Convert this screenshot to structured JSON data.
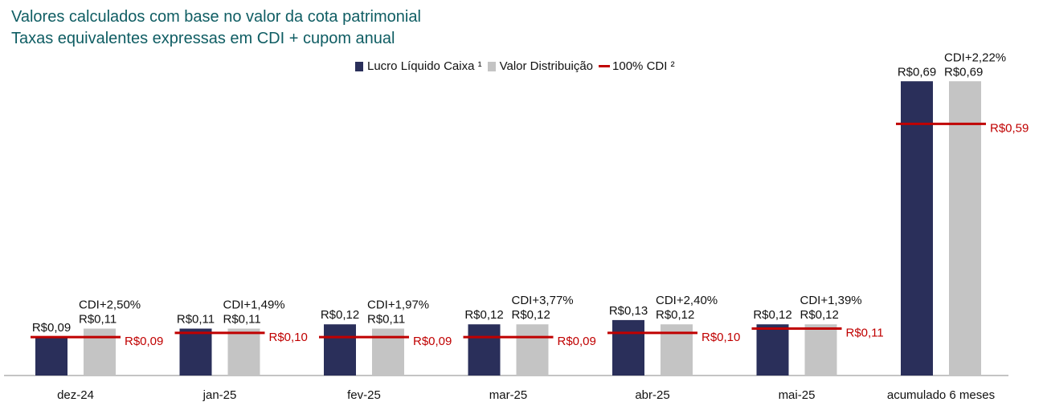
{
  "header": {
    "title": "Valores calculados com base no valor da cota patrimonial",
    "subtitle": "Taxas equivalentes expressas em CDI + cupom anual"
  },
  "legend": {
    "items": [
      {
        "label": "Lucro Líquido Caixa ¹",
        "color": "#2a2f5a",
        "kind": "bar"
      },
      {
        "label": "Valor Distribuição",
        "color": "#c4c4c4",
        "kind": "bar"
      },
      {
        "label": "100% CDI ²",
        "color": "#c00000",
        "kind": "line"
      }
    ]
  },
  "colors": {
    "lucro": "#2a2f5a",
    "distribuicao": "#c4c4c4",
    "cdi": "#c00000",
    "label_text": "#111111",
    "cdi_text": "#c00000",
    "title": "#0f5d63"
  },
  "chart_data": {
    "type": "bar",
    "title": "Valores calculados com base no valor da cota patrimonial",
    "subtitle": "Taxas equivalentes expressas em CDI + cupom anual",
    "categories": [
      "dez-24",
      "jan-25",
      "fev-25",
      "mar-25",
      "abr-25",
      "mai-25",
      "acumulado 6 meses"
    ],
    "series": [
      {
        "name": "Lucro Líquido Caixa ¹",
        "values": [
          0.09,
          0.11,
          0.12,
          0.12,
          0.13,
          0.12,
          0.69
        ],
        "labels": [
          "R$0,09",
          "R$0,11",
          "R$0,12",
          "R$0,12",
          "R$0,13",
          "R$0,12",
          "R$0,69"
        ]
      },
      {
        "name": "Valor Distribuição",
        "values": [
          0.11,
          0.11,
          0.11,
          0.12,
          0.12,
          0.12,
          0.69
        ],
        "labels": [
          "R$0,11",
          "R$0,11",
          "R$0,11",
          "R$0,12",
          "R$0,12",
          "R$0,12",
          "R$0,69"
        ],
        "annotations": [
          "CDI+2,50%",
          "CDI+1,49%",
          "CDI+1,97%",
          "CDI+3,77%",
          "CDI+2,40%",
          "CDI+1,39%",
          "CDI+2,22%"
        ]
      },
      {
        "name": "100% CDI ²",
        "type": "line-marker",
        "values": [
          0.09,
          0.1,
          0.09,
          0.09,
          0.1,
          0.11,
          0.59
        ],
        "labels": [
          "R$0,09",
          "R$0,10",
          "R$0,09",
          "R$0,09",
          "R$0,10",
          "R$0,11",
          "R$0,59"
        ]
      }
    ],
    "xlabel": "",
    "ylabel": "",
    "ylim": [
      0,
      0.73
    ],
    "grid": false,
    "legend_position": "top-center"
  }
}
